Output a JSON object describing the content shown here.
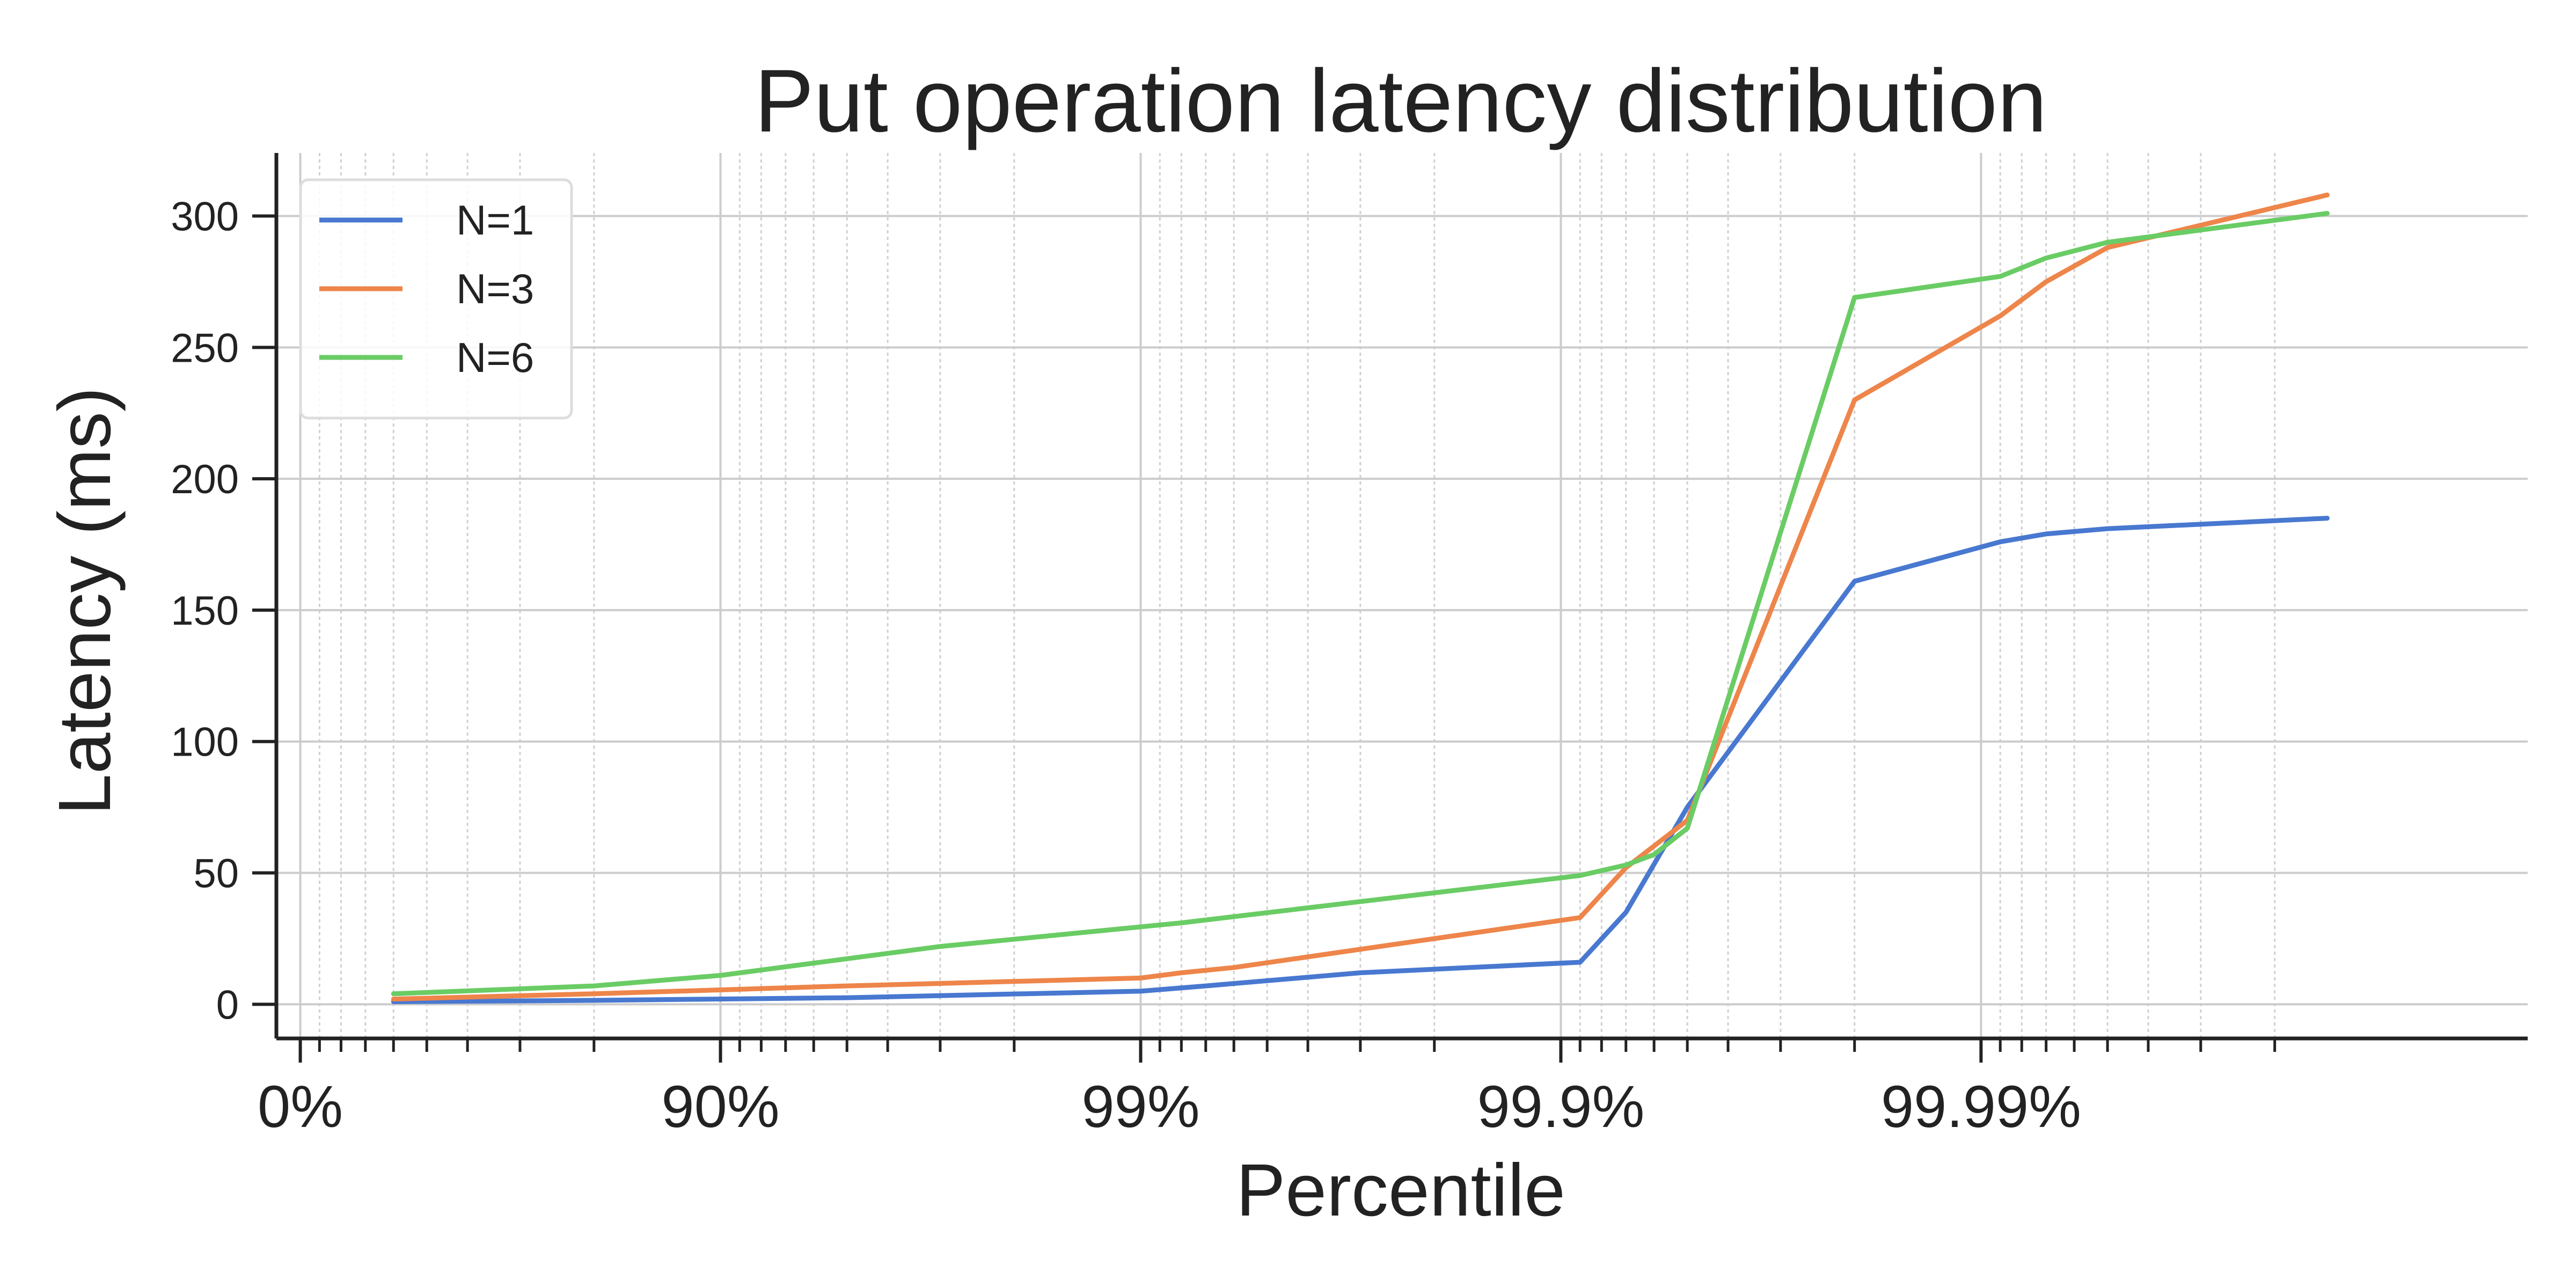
{
  "chart_data": {
    "type": "line",
    "title": "Put operation latency distribution",
    "xlabel": "Percentile",
    "ylabel": "Latency (ms)",
    "x_scale": "log of 1/(1 - percentile)",
    "x_ticks": [
      {
        "percentile": 0,
        "label": "0%"
      },
      {
        "percentile": 90,
        "label": "90%"
      },
      {
        "percentile": 99,
        "label": "99%"
      },
      {
        "percentile": 99.9,
        "label": "99.9%"
      },
      {
        "percentile": 99.99,
        "label": "99.99%"
      }
    ],
    "xlim_percentile": [
      -14,
      99.9995
    ],
    "y_ticks": [
      0,
      50,
      100,
      150,
      200,
      250,
      300
    ],
    "ylim": [
      -13,
      324
    ],
    "grid": true,
    "legend_position": "top-left",
    "series": [
      {
        "name": "N=1",
        "color": "#4878d0",
        "points": [
          [
            40,
            1
          ],
          [
            80,
            1.5
          ],
          [
            95,
            2.5
          ],
          [
            99,
            5
          ],
          [
            99.3,
            7
          ],
          [
            99.7,
            12
          ],
          [
            99.91,
            16
          ],
          [
            99.93,
            35
          ],
          [
            99.95,
            75
          ],
          [
            99.98,
            161
          ],
          [
            99.991,
            176
          ],
          [
            99.993,
            179
          ],
          [
            99.995,
            181
          ],
          [
            99.9985,
            185
          ]
        ]
      },
      {
        "name": "N=3",
        "color": "#ee854a",
        "points": [
          [
            40,
            2
          ],
          [
            80,
            4
          ],
          [
            95,
            7
          ],
          [
            99,
            10
          ],
          [
            99.2,
            12
          ],
          [
            99.4,
            14
          ],
          [
            99.91,
            33
          ],
          [
            99.93,
            52
          ],
          [
            99.95,
            70
          ],
          [
            99.98,
            230
          ],
          [
            99.991,
            262
          ],
          [
            99.993,
            275
          ],
          [
            99.995,
            288
          ],
          [
            99.9985,
            308
          ]
        ]
      },
      {
        "name": "N=6",
        "color": "#6acc64",
        "points": [
          [
            40,
            4
          ],
          [
            80,
            7
          ],
          [
            90,
            11
          ],
          [
            97,
            22
          ],
          [
            99.2,
            31
          ],
          [
            99.91,
            49
          ],
          [
            99.93,
            53
          ],
          [
            99.94,
            57
          ],
          [
            99.95,
            67
          ],
          [
            99.98,
            269
          ],
          [
            99.991,
            277
          ],
          [
            99.993,
            284
          ],
          [
            99.995,
            290
          ],
          [
            99.9985,
            301
          ]
        ]
      }
    ]
  }
}
